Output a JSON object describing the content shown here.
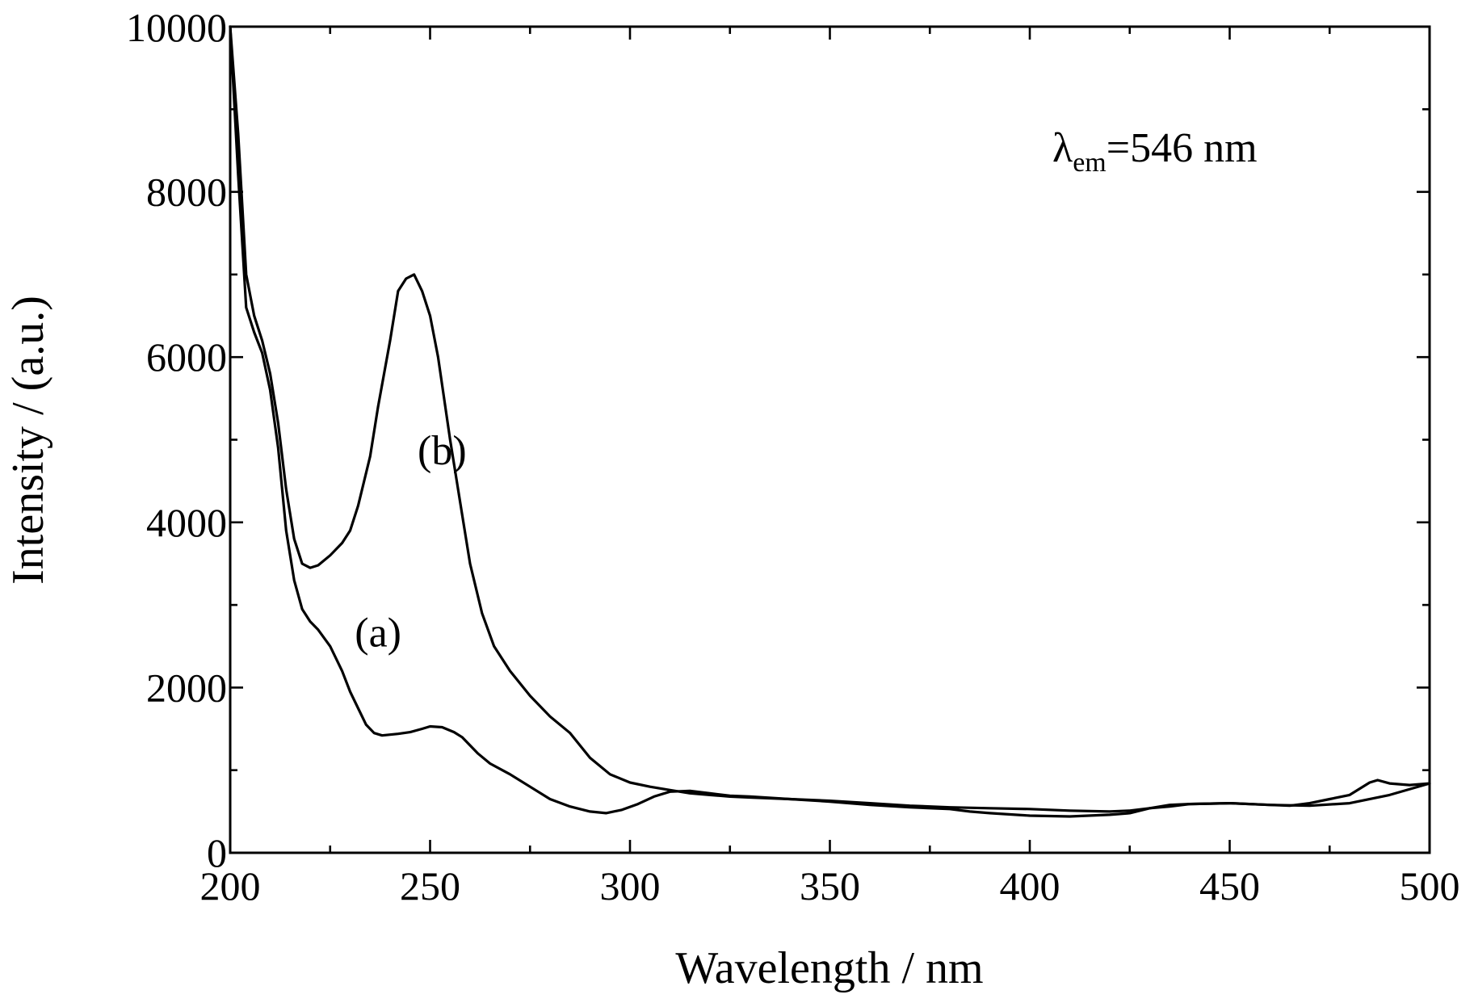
{
  "chart_data": {
    "type": "line",
    "xlabel": "Wavelength / nm",
    "ylabel": "Intensity / (a.u.)",
    "xlim": [
      200,
      500
    ],
    "ylim": [
      0,
      10000
    ],
    "x_ticks": [
      200,
      250,
      300,
      350,
      400,
      450,
      500
    ],
    "x_minor_ticks": [
      225,
      275,
      325,
      375,
      425,
      475
    ],
    "y_ticks": [
      0,
      2000,
      4000,
      6000,
      8000,
      10000
    ],
    "y_minor_ticks": [
      1000,
      3000,
      5000,
      7000,
      9000
    ],
    "grid": false,
    "legend": "none",
    "annotation": {
      "symbol": "λ",
      "subscript": "em",
      "text": "=546 nm"
    },
    "series": [
      {
        "name": "(a)",
        "label_at": [
          237,
          2500
        ],
        "x": [
          200,
          202,
          204,
          206,
          208,
          210,
          212,
          214,
          216,
          218,
          220,
          222,
          225,
          228,
          230,
          232,
          234,
          236,
          238,
          240,
          242,
          245,
          248,
          250,
          253,
          256,
          258,
          262,
          265,
          270,
          275,
          280,
          285,
          290,
          294,
          298,
          302,
          306,
          310,
          315,
          320,
          325,
          330,
          340,
          350,
          360,
          370,
          380,
          385,
          390,
          400,
          410,
          420,
          425,
          430,
          435,
          440,
          450,
          460,
          465,
          470,
          475,
          480,
          485,
          487,
          490,
          495,
          500
        ],
        "y": [
          10000,
          8200,
          6600,
          6300,
          6050,
          5600,
          4900,
          3900,
          3300,
          2950,
          2800,
          2700,
          2500,
          2200,
          1950,
          1750,
          1550,
          1450,
          1420,
          1430,
          1440,
          1460,
          1500,
          1530,
          1520,
          1460,
          1400,
          1200,
          1080,
          950,
          800,
          650,
          560,
          500,
          480,
          520,
          590,
          680,
          740,
          750,
          720,
          690,
          680,
          650,
          620,
          580,
          550,
          530,
          500,
          480,
          450,
          440,
          460,
          480,
          540,
          580,
          590,
          600,
          580,
          570,
          600,
          650,
          700,
          850,
          880,
          840,
          820,
          840
        ]
      },
      {
        "name": "(b)",
        "label_at": [
          253,
          4700
        ],
        "x": [
          200,
          202,
          204,
          206,
          208,
          210,
          212,
          214,
          216,
          218,
          220,
          222,
          225,
          228,
          230,
          232,
          235,
          237,
          240,
          242,
          244,
          246,
          248,
          250,
          252,
          255,
          258,
          260,
          263,
          266,
          270,
          275,
          280,
          285,
          290,
          295,
          300,
          305,
          310,
          315,
          320,
          325,
          330,
          335,
          340,
          350,
          360,
          370,
          380,
          390,
          400,
          410,
          420,
          425,
          430,
          435,
          440,
          450,
          460,
          470,
          480,
          490,
          500
        ],
        "y": [
          10000,
          8700,
          7000,
          6500,
          6200,
          5800,
          5200,
          4400,
          3800,
          3500,
          3450,
          3480,
          3600,
          3750,
          3900,
          4200,
          4800,
          5400,
          6200,
          6800,
          6950,
          7000,
          6800,
          6500,
          6000,
          5000,
          4100,
          3500,
          2900,
          2500,
          2200,
          1900,
          1650,
          1450,
          1150,
          950,
          850,
          800,
          760,
          720,
          700,
          680,
          670,
          660,
          650,
          630,
          600,
          570,
          550,
          540,
          530,
          510,
          500,
          510,
          540,
          560,
          590,
          600,
          580,
          570,
          600,
          700,
          840
        ]
      }
    ]
  }
}
